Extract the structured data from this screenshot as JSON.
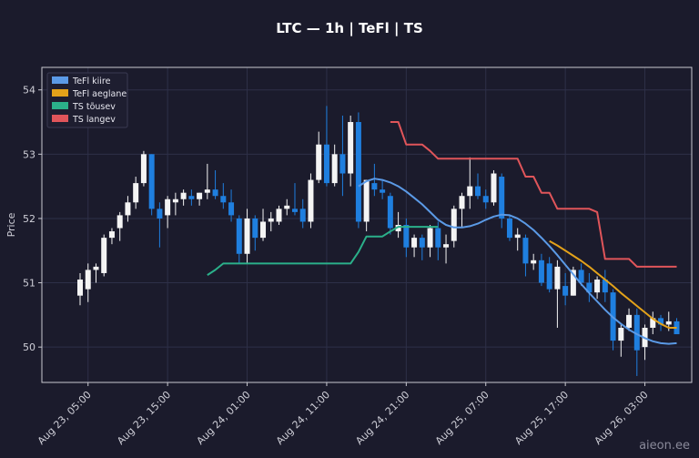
{
  "chart_data": {
    "type": "candlestick",
    "title": "LTC — 1h  |  TeFl  |  TS",
    "ylabel": "Price",
    "xlabel": "",
    "ylim": [
      49.45,
      54.35
    ],
    "y_ticks": [
      50,
      51,
      52,
      53,
      54
    ],
    "x_tick_labels": [
      "Aug 23, 05:00",
      "Aug 23, 15:00",
      "Aug 24, 01:00",
      "Aug 24, 11:00",
      "Aug 24, 21:00",
      "Aug 25, 07:00",
      "Aug 25, 17:00",
      "Aug 26, 03:00"
    ],
    "x_tick_bar_index": [
      1,
      11,
      21,
      31,
      41,
      51,
      61,
      71
    ],
    "grid": true,
    "legend_position": "top-left",
    "candle_up_color": "#f4f4f4",
    "candle_down_color": "#1f7fdf",
    "candles": [
      [
        50.8,
        51.15,
        50.65,
        51.05
      ],
      [
        50.9,
        51.3,
        50.7,
        51.2
      ],
      [
        51.2,
        51.3,
        51.0,
        51.25
      ],
      [
        51.15,
        51.75,
        51.1,
        51.7
      ],
      [
        51.7,
        51.85,
        51.6,
        51.8
      ],
      [
        51.85,
        52.1,
        51.65,
        52.05
      ],
      [
        52.05,
        52.35,
        51.95,
        52.25
      ],
      [
        52.25,
        52.65,
        52.15,
        52.55
      ],
      [
        52.55,
        53.05,
        52.5,
        53.0
      ],
      [
        53.0,
        53.0,
        52.05,
        52.15
      ],
      [
        52.15,
        52.25,
        51.55,
        52.0
      ],
      [
        52.05,
        52.35,
        51.85,
        52.3
      ],
      [
        52.25,
        52.4,
        52.05,
        52.3
      ],
      [
        52.3,
        52.45,
        52.2,
        52.4
      ],
      [
        52.35,
        52.45,
        52.2,
        52.3
      ],
      [
        52.3,
        52.4,
        52.2,
        52.4
      ],
      [
        52.4,
        52.85,
        52.3,
        52.45
      ],
      [
        52.45,
        52.75,
        52.3,
        52.35
      ],
      [
        52.35,
        52.55,
        52.15,
        52.25
      ],
      [
        52.25,
        52.45,
        51.95,
        52.05
      ],
      [
        52.0,
        52.05,
        51.3,
        51.45
      ],
      [
        51.45,
        52.15,
        51.3,
        52.0
      ],
      [
        52.0,
        52.05,
        51.5,
        51.7
      ],
      [
        51.7,
        52.15,
        51.65,
        51.95
      ],
      [
        51.95,
        52.1,
        51.8,
        52.0
      ],
      [
        51.95,
        52.2,
        51.9,
        52.15
      ],
      [
        52.15,
        52.3,
        52.05,
        52.2
      ],
      [
        52.15,
        52.55,
        52.05,
        52.1
      ],
      [
        52.15,
        52.3,
        51.85,
        51.95
      ],
      [
        51.95,
        52.7,
        51.85,
        52.6
      ],
      [
        52.6,
        53.35,
        52.55,
        53.15
      ],
      [
        53.15,
        53.75,
        52.5,
        52.55
      ],
      [
        52.55,
        53.15,
        52.5,
        53.0
      ],
      [
        53.0,
        53.6,
        52.35,
        52.7
      ],
      [
        52.7,
        53.6,
        52.5,
        53.5
      ],
      [
        53.5,
        53.65,
        51.85,
        51.95
      ],
      [
        51.95,
        52.6,
        51.8,
        52.6
      ],
      [
        52.55,
        52.85,
        52.35,
        52.45
      ],
      [
        52.45,
        52.6,
        52.3,
        52.4
      ],
      [
        52.35,
        52.4,
        51.75,
        51.85
      ],
      [
        51.8,
        52.1,
        51.7,
        51.9
      ],
      [
        51.9,
        52.0,
        51.4,
        51.55
      ],
      [
        51.55,
        51.75,
        51.4,
        51.7
      ],
      [
        51.7,
        51.75,
        51.35,
        51.55
      ],
      [
        51.55,
        51.9,
        51.4,
        51.85
      ],
      [
        51.85,
        51.95,
        51.35,
        51.55
      ],
      [
        51.55,
        51.75,
        51.3,
        51.6
      ],
      [
        51.65,
        52.2,
        51.55,
        52.15
      ],
      [
        52.15,
        52.4,
        51.85,
        52.35
      ],
      [
        52.35,
        52.95,
        52.15,
        52.5
      ],
      [
        52.5,
        52.7,
        52.3,
        52.35
      ],
      [
        52.35,
        52.45,
        52.15,
        52.25
      ],
      [
        52.25,
        52.75,
        52.2,
        52.7
      ],
      [
        52.65,
        52.7,
        51.85,
        52.0
      ],
      [
        52.0,
        52.05,
        51.65,
        51.7
      ],
      [
        51.7,
        51.85,
        51.5,
        51.75
      ],
      [
        51.7,
        51.75,
        51.1,
        51.3
      ],
      [
        51.3,
        51.45,
        51.2,
        51.35
      ],
      [
        51.35,
        51.45,
        50.95,
        51.0
      ],
      [
        51.3,
        51.4,
        50.85,
        50.9
      ],
      [
        50.9,
        51.35,
        50.3,
        51.25
      ],
      [
        50.95,
        51.15,
        50.65,
        50.8
      ],
      [
        50.8,
        51.25,
        50.8,
        51.2
      ],
      [
        51.2,
        51.3,
        50.95,
        51.0
      ],
      [
        51.0,
        51.15,
        50.7,
        50.85
      ],
      [
        50.85,
        51.1,
        50.75,
        51.05
      ],
      [
        51.05,
        51.2,
        50.7,
        50.85
      ],
      [
        50.85,
        50.9,
        49.95,
        50.1
      ],
      [
        50.1,
        50.35,
        49.85,
        50.3
      ],
      [
        50.3,
        50.6,
        50.25,
        50.5
      ],
      [
        50.5,
        50.6,
        49.55,
        49.95
      ],
      [
        50.0,
        50.35,
        49.8,
        50.3
      ],
      [
        50.3,
        50.55,
        50.2,
        50.45
      ],
      [
        50.45,
        50.5,
        50.25,
        50.35
      ],
      [
        50.35,
        50.55,
        50.25,
        50.4
      ],
      [
        50.4,
        50.45,
        50.2,
        50.2
      ]
    ],
    "series": [
      {
        "name": "TeFl kiire",
        "color": "#5b9ae6",
        "start_index": 35,
        "values": [
          52.5,
          52.58,
          52.62,
          52.6,
          52.56,
          52.5,
          52.42,
          52.32,
          52.22,
          52.1,
          51.98,
          51.9,
          51.86,
          51.86,
          51.88,
          51.92,
          51.98,
          52.03,
          52.06,
          52.05,
          52.0,
          51.92,
          51.82,
          51.7,
          51.57,
          51.43,
          51.28,
          51.13,
          50.98,
          50.84,
          50.71,
          50.58,
          50.46,
          50.36,
          50.27,
          50.2,
          50.14,
          50.09,
          50.06,
          50.05,
          50.06
        ]
      },
      {
        "name": "TeFl aeglane",
        "color": "#e3a21a",
        "start_index": 59,
        "values": [
          51.65,
          51.58,
          51.5,
          51.42,
          51.34,
          51.25,
          51.15,
          51.05,
          50.95,
          50.84,
          50.74,
          50.64,
          50.54,
          50.44,
          50.36,
          50.3,
          50.3
        ]
      },
      {
        "name": "TS tõusev",
        "color": "#2bb08a",
        "start_index": 16,
        "values": [
          51.12,
          51.2,
          51.3,
          51.3,
          51.3,
          51.3,
          51.3,
          51.3,
          51.3,
          51.3,
          51.3,
          51.3,
          51.3,
          51.3,
          51.3,
          51.3,
          51.3,
          51.3,
          51.3,
          51.48,
          51.72,
          51.72,
          51.72,
          51.8,
          51.87,
          51.87,
          51.87,
          51.87,
          51.87,
          51.87
        ]
      },
      {
        "name": "TS langev",
        "color": "#e0555a",
        "start_index": 39,
        "values": [
          53.5,
          53.5,
          53.15,
          53.15,
          53.15,
          53.05,
          52.93,
          52.93,
          52.93,
          52.93,
          52.93,
          52.93,
          52.93,
          52.93,
          52.93,
          52.93,
          52.93,
          52.65,
          52.65,
          52.4,
          52.4,
          52.15,
          52.15,
          52.15,
          52.15,
          52.15,
          52.1,
          51.37,
          51.37,
          51.37,
          51.37,
          51.25,
          51.25,
          51.25,
          51.25,
          51.25,
          51.25
        ]
      }
    ]
  },
  "watermark": "aieon.ee",
  "colors": {
    "background": "#1b1b2c",
    "axes": "#c8c8d0",
    "grid": "#2e3048",
    "text": "#cfcfd8"
  }
}
